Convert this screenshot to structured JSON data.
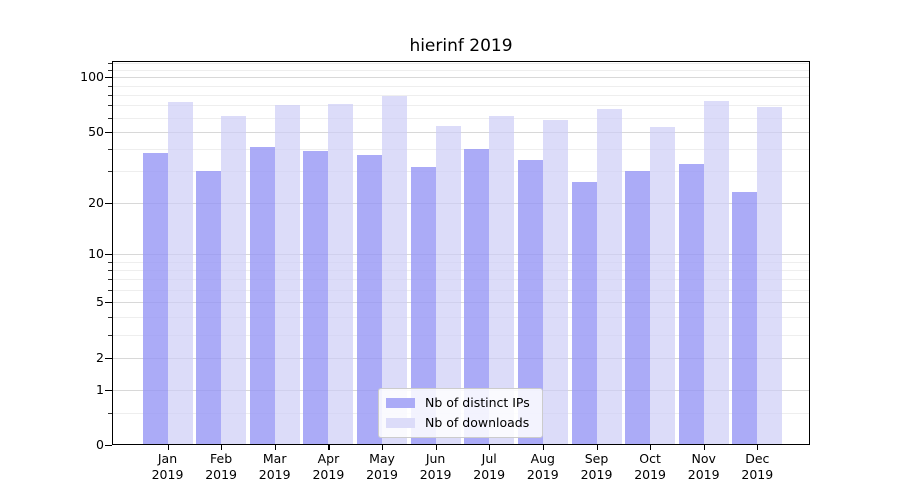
{
  "page": {
    "background_color": "#ffffff"
  },
  "chart_data": {
    "type": "bar",
    "title": "hierinf 2019",
    "categories": [
      "Jan",
      "Feb",
      "Mar",
      "Apr",
      "May",
      "Jun",
      "Jul",
      "Aug",
      "Sep",
      "Oct",
      "Nov",
      "Dec"
    ],
    "year": "2019",
    "series": [
      {
        "name": "Nb of distinct IPs",
        "color": "#ababf7",
        "fill": "rgba(150,150,245,0.8)",
        "values": [
          38,
          30,
          41,
          39,
          37,
          32,
          40,
          35,
          26,
          30,
          33,
          23
        ]
      },
      {
        "name": "Nb of downloads",
        "color": "#dcdcf9",
        "fill": "rgba(205,205,247,0.7)",
        "values": [
          73,
          61,
          70,
          71,
          79,
          54,
          61,
          58,
          67,
          53,
          74,
          69
        ]
      }
    ],
    "y_scale": "log1p",
    "ylim": [
      0,
      123
    ],
    "y_ticks": [
      0,
      1,
      2,
      5,
      10,
      20,
      50,
      100
    ],
    "y_minor_ticks": [
      0.5,
      3,
      4,
      6,
      7,
      8,
      9,
      30,
      40,
      60,
      70,
      80,
      90,
      110,
      120
    ],
    "grid": true,
    "legend_position": "lower center",
    "xlabel": "",
    "ylabel": ""
  }
}
